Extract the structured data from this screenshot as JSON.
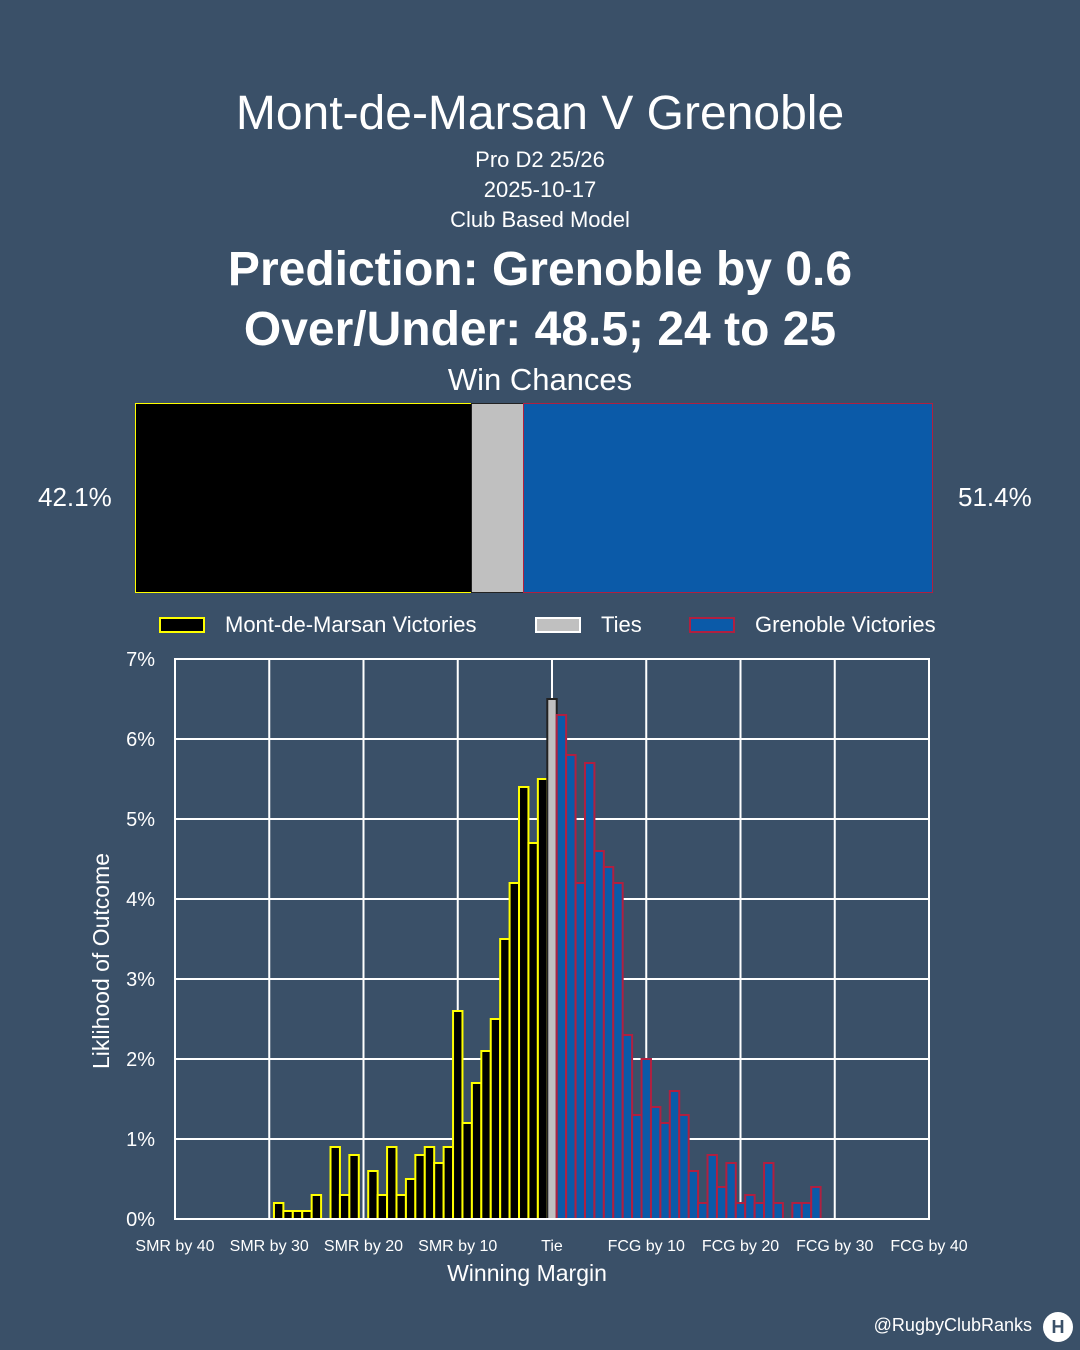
{
  "header": {
    "title": "Mont-de-Marsan V Grenoble",
    "competition": "Pro D2 25/26",
    "date": "2025-10-17",
    "model": "Club Based Model",
    "prediction": "Prediction: Grenoble by 0.6",
    "over_under": "Over/Under: 48.5; 24 to 25"
  },
  "win_chances": {
    "title": "Win Chances",
    "home_label": "42.1%",
    "away_label": "51.4%",
    "home": 42.1,
    "tie": 6.5,
    "away": 51.4
  },
  "legend": {
    "home": "Mont-de-Marsan Victories",
    "tie": "Ties",
    "away": "Grenoble Victories"
  },
  "colors": {
    "background": "#3a5068",
    "home_fill": "#000000",
    "home_edge": "#ffff00",
    "tie_fill": "#c0c0c0",
    "away_fill": "#0b5aa8",
    "away_edge": "#b02040",
    "grid": "#ffffff"
  },
  "chart_data": {
    "type": "bar",
    "xlabel": "Winning Margin",
    "ylabel": "Liklihood of Outcome",
    "xlim": [
      -40,
      40
    ],
    "ylim": [
      0,
      7
    ],
    "grid": true,
    "x_ticks": [
      {
        "x": -40,
        "label": "SMR by 40"
      },
      {
        "x": -30,
        "label": "SMR by 30"
      },
      {
        "x": -20,
        "label": "SMR by 20"
      },
      {
        "x": -10,
        "label": "SMR by 10"
      },
      {
        "x": 0,
        "label": "Tie"
      },
      {
        "x": 10,
        "label": "FCG by 10"
      },
      {
        "x": 20,
        "label": "FCG by 20"
      },
      {
        "x": 30,
        "label": "FCG by 30"
      },
      {
        "x": 40,
        "label": "FCG by 40"
      }
    ],
    "y_ticks": [
      {
        "y": 0,
        "label": "0%"
      },
      {
        "y": 1,
        "label": "1%"
      },
      {
        "y": 2,
        "label": "2%"
      },
      {
        "y": 3,
        "label": "3%"
      },
      {
        "y": 4,
        "label": "4%"
      },
      {
        "y": 5,
        "label": "5%"
      },
      {
        "y": 6,
        "label": "6%"
      },
      {
        "y": 7,
        "label": "7%"
      }
    ],
    "series": [
      {
        "name": "Mont-de-Marsan Victories",
        "x": [
          -29,
          -28,
          -27,
          -26,
          -25,
          -24,
          -23,
          -22,
          -21,
          -20,
          -19,
          -18,
          -17,
          -16,
          -15,
          -14,
          -13,
          -12,
          -11,
          -10,
          -9,
          -8,
          -7,
          -6,
          -5,
          -4,
          -3,
          -2,
          -1
        ],
        "values": [
          0.2,
          0.1,
          0.1,
          0.1,
          0.3,
          0.0,
          0.9,
          0.3,
          0.8,
          0.0,
          0.6,
          0.3,
          0.9,
          0.3,
          0.5,
          0.8,
          0.9,
          0.7,
          0.9,
          2.6,
          1.2,
          1.7,
          2.1,
          2.5,
          3.5,
          4.2,
          5.4,
          4.7,
          5.5
        ]
      },
      {
        "name": "Ties",
        "x": [
          0
        ],
        "values": [
          6.5
        ]
      },
      {
        "name": "Grenoble Victories",
        "x": [
          1,
          2,
          3,
          4,
          5,
          6,
          7,
          8,
          9,
          10,
          11,
          12,
          13,
          14,
          15,
          16,
          17,
          18,
          19,
          20,
          21,
          22,
          23,
          24,
          25,
          26,
          27,
          28,
          29
        ],
        "values": [
          6.3,
          5.8,
          4.2,
          5.7,
          4.6,
          4.4,
          4.2,
          2.3,
          1.3,
          2.0,
          1.4,
          1.2,
          1.6,
          1.3,
          0.6,
          0.2,
          0.8,
          0.4,
          0.7,
          0.2,
          0.3,
          0.2,
          0.7,
          0.2,
          0.0,
          0.2,
          0.2,
          0.4,
          0.0
        ]
      }
    ]
  },
  "footer": {
    "credit": "@RugbyClubRanks",
    "logo_glyph": "H"
  }
}
